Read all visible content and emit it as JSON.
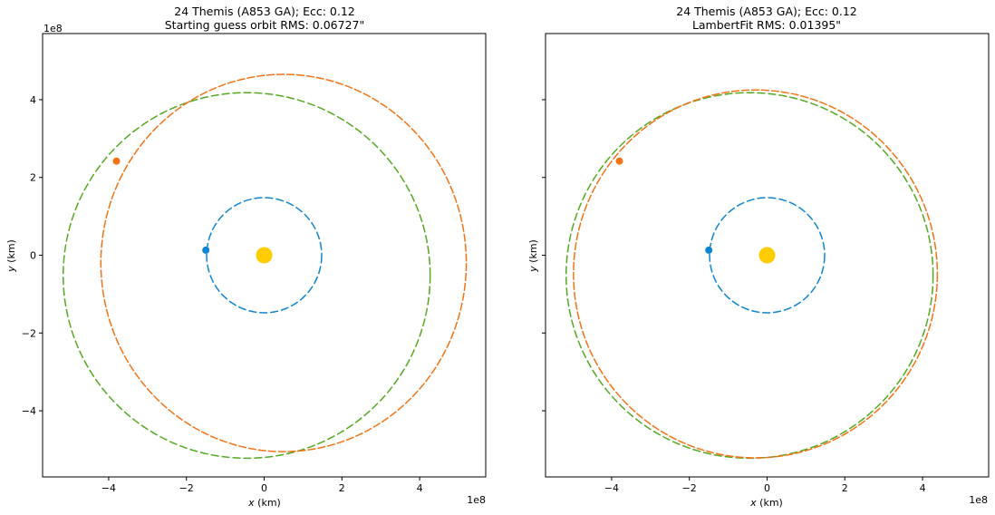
{
  "figure_bg": "#ffffff",
  "chart_data": [
    {
      "type": "scatter",
      "title_line1": "24 Themis (A853 GA); Ecc: 0.12",
      "title_line2": "Starting guess orbit RMS: 0.06727\"",
      "xlabel": "x (km)",
      "ylabel": "y (km)",
      "x_offset_label": "1e8",
      "y_offset_label": "1e8",
      "scale": 100000000,
      "xlim": [
        -5.7,
        5.7
      ],
      "ylim": [
        -5.7,
        5.7
      ],
      "xticks": [
        -4,
        -2,
        0,
        2,
        4
      ],
      "yticks": [
        -4,
        -2,
        0,
        2,
        4
      ],
      "xtick_labels": [
        "−4",
        "−2",
        "0",
        "2",
        "4"
      ],
      "ytick_labels": [
        "−4",
        "−2",
        "0",
        "2",
        "4"
      ],
      "show_ytick_labels": true,
      "grid": false,
      "orbits": [
        {
          "id": "earth-orbit",
          "center": [
            0.0,
            0.0
          ],
          "rx": 1.48,
          "ry": 1.48,
          "color": "#0e85d0",
          "dash": "9,3"
        },
        {
          "id": "reference-orbit",
          "center": [
            -0.45,
            -0.52
          ],
          "rx": 4.72,
          "ry": 4.7,
          "color": "#55a821",
          "dash": "9,3"
        },
        {
          "id": "fitted-orbit",
          "center": [
            0.5,
            -0.2
          ],
          "rx": 4.7,
          "ry": 4.85,
          "color": "#f27316",
          "dash": "9,2"
        }
      ],
      "markers": [
        {
          "id": "sun-marker",
          "x": 0.0,
          "y": 0.0,
          "r_px": 9,
          "color": "#ffcc00"
        },
        {
          "id": "earth-marker",
          "x": -1.5,
          "y": 0.13,
          "r_px": 4,
          "color": "#0e85d0"
        },
        {
          "id": "asteroid-marker",
          "x": -3.8,
          "y": 2.42,
          "r_px": 4,
          "color": "#f27316"
        }
      ]
    },
    {
      "type": "scatter",
      "title_line1": "24 Themis (A853 GA); Ecc: 0.12",
      "title_line2": "LambertFit RMS: 0.01395\"",
      "xlabel": "x (km)",
      "ylabel": "y (km)",
      "x_offset_label": "1e8",
      "y_offset_label": "",
      "scale": 100000000,
      "xlim": [
        -5.7,
        5.7
      ],
      "ylim": [
        -5.7,
        5.7
      ],
      "xticks": [
        -4,
        -2,
        0,
        2,
        4
      ],
      "yticks": [
        -4,
        -2,
        0,
        2,
        4
      ],
      "xtick_labels": [
        "−4",
        "−2",
        "0",
        "2",
        "4"
      ],
      "ytick_labels": [
        "",
        "",
        "",
        "",
        ""
      ],
      "show_ytick_labels": false,
      "grid": false,
      "orbits": [
        {
          "id": "earth-orbit",
          "center": [
            0.0,
            0.0
          ],
          "rx": 1.48,
          "ry": 1.48,
          "color": "#0e85d0",
          "dash": "9,3"
        },
        {
          "id": "reference-orbit",
          "center": [
            -0.45,
            -0.52
          ],
          "rx": 4.72,
          "ry": 4.7,
          "color": "#55a821",
          "dash": "9,3"
        },
        {
          "id": "fitted-orbit",
          "center": [
            -0.3,
            -0.48
          ],
          "rx": 4.68,
          "ry": 4.73,
          "color": "#f27316",
          "dash": "9,2"
        }
      ],
      "markers": [
        {
          "id": "sun-marker",
          "x": 0.0,
          "y": 0.0,
          "r_px": 9,
          "color": "#ffcc00"
        },
        {
          "id": "earth-marker",
          "x": -1.5,
          "y": 0.13,
          "r_px": 4,
          "color": "#0e85d0"
        },
        {
          "id": "asteroid-marker",
          "x": -3.8,
          "y": 2.42,
          "r_px": 4,
          "color": "#f27316"
        }
      ]
    }
  ]
}
